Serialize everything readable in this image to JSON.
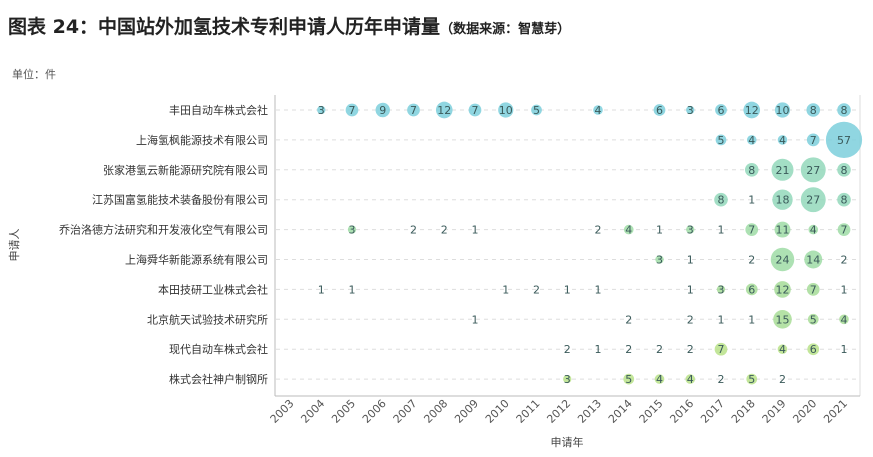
{
  "title": "图表 24：中国站外加氢技术专利申请人历年申请量",
  "source": "（数据来源：智慧芽）",
  "unit": "单位：件",
  "chart_data": {
    "type": "scatter",
    "subtype": "bubble",
    "xlabel": "申请年",
    "ylabel": "申请人",
    "x": [
      2003,
      2004,
      2005,
      2006,
      2007,
      2008,
      2009,
      2010,
      2011,
      2012,
      2013,
      2014,
      2015,
      2016,
      2017,
      2018,
      2019,
      2020,
      2021
    ],
    "grid": "horizontal dashed",
    "categories": [
      "丰田自动车株式会社",
      "上海氢枫能源技术有限公司",
      "张家港氢云新能源研究院有限公司",
      "江苏国富氢能技术装备股份有限公司",
      "乔治洛德方法研究和开发液化空气有限公司",
      "上海舜华新能源系统有限公司",
      "本田技研工业株式会社",
      "北京航天试验技术研究所",
      "现代自动车株式会社",
      "株式会社神户制钢所"
    ],
    "colors": [
      "#7ccfdc",
      "#7ccfdc",
      "#93d8bb",
      "#93d8bb",
      "#9fdca6",
      "#9fdca6",
      "#a6dc98",
      "#a8dd96",
      "#b9e288",
      "#b9e288"
    ],
    "series": [
      {
        "points": [
          [
            2004,
            3
          ],
          [
            2005,
            7
          ],
          [
            2006,
            9
          ],
          [
            2007,
            7
          ],
          [
            2008,
            12
          ],
          [
            2009,
            7
          ],
          [
            2010,
            10
          ],
          [
            2011,
            5
          ],
          [
            2013,
            4
          ],
          [
            2015,
            6
          ],
          [
            2016,
            3
          ],
          [
            2017,
            6
          ],
          [
            2018,
            12
          ],
          [
            2019,
            10
          ],
          [
            2020,
            8
          ],
          [
            2021,
            8
          ]
        ]
      },
      {
        "points": [
          [
            2017,
            5
          ],
          [
            2018,
            4
          ],
          [
            2019,
            4
          ],
          [
            2020,
            7
          ],
          [
            2021,
            57
          ]
        ]
      },
      {
        "points": [
          [
            2018,
            8
          ],
          [
            2019,
            21
          ],
          [
            2020,
            27
          ],
          [
            2021,
            8
          ]
        ]
      },
      {
        "points": [
          [
            2017,
            8
          ],
          [
            2018,
            1
          ],
          [
            2019,
            18
          ],
          [
            2020,
            27
          ],
          [
            2021,
            8
          ]
        ]
      },
      {
        "points": [
          [
            2005,
            3
          ],
          [
            2007,
            2
          ],
          [
            2008,
            2
          ],
          [
            2009,
            1
          ],
          [
            2013,
            2
          ],
          [
            2014,
            4
          ],
          [
            2015,
            1
          ],
          [
            2016,
            3
          ],
          [
            2017,
            1
          ],
          [
            2018,
            7
          ],
          [
            2019,
            11
          ],
          [
            2020,
            4
          ],
          [
            2021,
            7
          ]
        ]
      },
      {
        "points": [
          [
            2015,
            3
          ],
          [
            2016,
            1
          ],
          [
            2018,
            2
          ],
          [
            2019,
            24
          ],
          [
            2020,
            14
          ],
          [
            2021,
            2
          ]
        ]
      },
      {
        "points": [
          [
            2004,
            1
          ],
          [
            2005,
            1
          ],
          [
            2010,
            1
          ],
          [
            2011,
            2
          ],
          [
            2012,
            1
          ],
          [
            2013,
            1
          ],
          [
            2016,
            1
          ],
          [
            2017,
            3
          ],
          [
            2018,
            6
          ],
          [
            2019,
            12
          ],
          [
            2020,
            7
          ],
          [
            2021,
            1
          ]
        ]
      },
      {
        "points": [
          [
            2009,
            1
          ],
          [
            2014,
            2
          ],
          [
            2016,
            2
          ],
          [
            2017,
            1
          ],
          [
            2018,
            1
          ],
          [
            2019,
            15
          ],
          [
            2020,
            5
          ],
          [
            2021,
            4
          ]
        ]
      },
      {
        "points": [
          [
            2012,
            2
          ],
          [
            2013,
            1
          ],
          [
            2014,
            2
          ],
          [
            2015,
            2
          ],
          [
            2016,
            2
          ],
          [
            2017,
            7
          ],
          [
            2019,
            4
          ],
          [
            2020,
            6
          ],
          [
            2021,
            1
          ]
        ]
      },
      {
        "points": [
          [
            2012,
            3
          ],
          [
            2014,
            5
          ],
          [
            2015,
            4
          ],
          [
            2016,
            4
          ],
          [
            2017,
            2
          ],
          [
            2018,
            5
          ],
          [
            2019,
            2
          ]
        ]
      }
    ]
  }
}
